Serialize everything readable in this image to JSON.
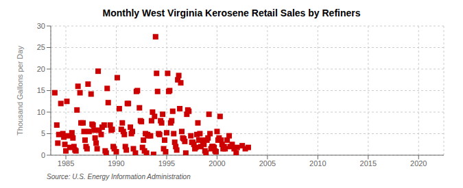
{
  "chart_data": {
    "type": "scatter",
    "title": "Monthly West Virginia Kerosene Retail Sales by Refiners",
    "ylabel": "Thousand Gallons per Day",
    "annotations": [
      "Source: U.S. Energy Information Administration"
    ],
    "color": "#cc0000",
    "marker": "square",
    "grid": true,
    "xlim": [
      1983.5,
      2022.5
    ],
    "ylim": [
      0,
      30
    ],
    "xticks": [
      1985,
      1990,
      1995,
      2000,
      2005,
      2010,
      2015,
      2020
    ],
    "yticks": [
      0,
      5,
      10,
      15,
      20,
      25,
      30
    ],
    "x": [
      1983.9,
      1984.1,
      1984.2,
      1984.3,
      1984.5,
      1984.7,
      1984.8,
      1984.9,
      1985.0,
      1985.1,
      1985.2,
      1985.4,
      1985.6,
      1985.7,
      1985.8,
      1985.9,
      1986.0,
      1986.1,
      1986.2,
      1986.4,
      1986.5,
      1986.7,
      1986.8,
      1986.9,
      1987.0,
      1987.1,
      1987.2,
      1987.3,
      1987.5,
      1987.6,
      1987.7,
      1987.8,
      1987.9,
      1988.0,
      1988.1,
      1988.2,
      1988.3,
      1988.5,
      1988.6,
      1988.8,
      1988.9,
      1989.0,
      1989.1,
      1989.2,
      1989.4,
      1989.5,
      1989.6,
      1989.7,
      1989.8,
      1990.0,
      1990.1,
      1990.3,
      1990.5,
      1990.6,
      1990.7,
      1990.8,
      1990.9,
      1991.0,
      1991.1,
      1991.2,
      1991.4,
      1991.5,
      1991.6,
      1991.7,
      1991.9,
      1992.0,
      1992.1,
      1992.3,
      1992.4,
      1992.5,
      1992.6,
      1992.7,
      1992.8,
      1992.9,
      1993.0,
      1993.1,
      1993.2,
      1993.4,
      1993.5,
      1993.6,
      1993.7,
      1993.8,
      1993.9,
      1994.0,
      1994.1,
      1994.2,
      1994.3,
      1994.4,
      1994.5,
      1994.6,
      1994.7,
      1994.8,
      1994.9,
      1995.0,
      1995.1,
      1995.2,
      1995.3,
      1995.4,
      1995.5,
      1995.6,
      1995.7,
      1995.8,
      1995.9,
      1996.0,
      1996.1,
      1996.2,
      1996.3,
      1996.4,
      1996.5,
      1996.6,
      1996.7,
      1996.8,
      1996.9,
      1997.0,
      1997.1,
      1997.2,
      1997.4,
      1997.5,
      1997.6,
      1997.7,
      1997.8,
      1997.9,
      1998.0,
      1998.1,
      1998.2,
      1998.3,
      1998.4,
      1998.5,
      1998.6,
      1998.7,
      1998.8,
      1998.9,
      1999.0,
      1999.1,
      1999.2,
      1999.3,
      1999.4,
      1999.5,
      1999.6,
      1999.7,
      1999.8,
      1999.9,
      2000.0,
      2000.1,
      2000.2,
      2000.3,
      2000.4,
      2000.5,
      2000.6,
      2000.7,
      2000.8,
      2001.0,
      2001.2,
      2001.3,
      2001.5,
      2001.7,
      2001.9,
      2002.0,
      2002.5,
      2002.8,
      2003.1
    ],
    "values": [
      14.5,
      7.0,
      2.8,
      4.8,
      12.0,
      5.0,
      4.2,
      2.5,
      1.0,
      12.5,
      4.5,
      1.8,
      5.2,
      4.0,
      2.0,
      1.2,
      1.0,
      10.5,
      16.0,
      14.5,
      7.5,
      7.5,
      5.5,
      3.5,
      2.0,
      1.5,
      16.5,
      5.5,
      14.2,
      7.2,
      7.0,
      5.8,
      4.0,
      2.8,
      1.5,
      19.5,
      5.8,
      4.8,
      6.5,
      7.0,
      1.0,
      0.5,
      15.5,
      12.2,
      7.0,
      5.8,
      6.0,
      2.0,
      1.5,
      0.8,
      18.0,
      10.8,
      6.0,
      7.5,
      5.5,
      4.8,
      2.0,
      1.2,
      12.0,
      12.0,
      6.5,
      5.0,
      5.5,
      1.5,
      0.5,
      14.8,
      15.0,
      11.0,
      8.0,
      7.8,
      1.8,
      3.5,
      1.0,
      5.0,
      0.5,
      4.8,
      4.5,
      4.5,
      8.0,
      10.0,
      0.2,
      9.0,
      27.5,
      19.0,
      14.8,
      5.0,
      4.8,
      8.0,
      7.5,
      9.5,
      1.5,
      3.5,
      0.8,
      5.2,
      19.0,
      14.8,
      15.0,
      7.5,
      8.0,
      10.2,
      5.0,
      3.0,
      2.0,
      1.2,
      17.5,
      18.5,
      10.8,
      16.8,
      5.5,
      4.0,
      3.8,
      3.2,
      0.5,
      9.5,
      10.5,
      10.2,
      4.5,
      3.0,
      3.0,
      2.5,
      1.5,
      1.8,
      4.8,
      7.5,
      3.5,
      5.0,
      2.0,
      3.5,
      2.8,
      2.5,
      1.0,
      0.5,
      3.5,
      4.0,
      9.5,
      5.0,
      1.5,
      2.0,
      2.0,
      1.8,
      1.0,
      0.8,
      5.5,
      3.5,
      4.0,
      9.0,
      3.5,
      2.5,
      1.5,
      2.0,
      1.5,
      3.5,
      4.5,
      2.0,
      2.5,
      1.5,
      0.5,
      1.8,
      2.2,
      1.5,
      1.8
    ]
  }
}
